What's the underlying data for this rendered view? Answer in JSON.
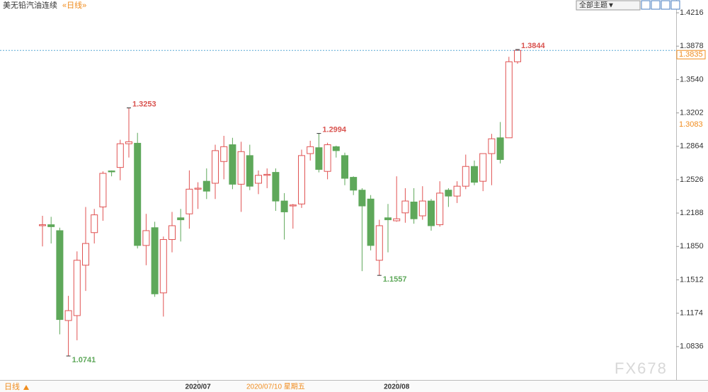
{
  "chart_data": {
    "type": "candlestick",
    "title": "美无铅汽油连续",
    "subtitle": "«日线»",
    "theme_button": "全部主题▼",
    "period": "日线",
    "cursor_label": "2020/07/10 星期五",
    "cursor_index": 27,
    "watermark": "FX678",
    "up_color": "#e05252",
    "down_color": "#5ea85a",
    "categories": [
      null,
      null,
      null,
      null,
      null,
      null,
      null,
      null,
      null,
      null,
      null,
      null,
      null,
      null,
      null,
      null,
      null,
      null,
      "2020/07",
      null,
      null,
      null,
      null,
      null,
      null,
      null,
      null,
      null,
      null,
      null,
      null,
      null,
      null,
      null,
      null,
      null,
      null,
      null,
      null,
      null,
      null,
      "2020/08",
      null,
      null,
      null,
      null,
      null,
      null,
      null,
      null,
      null,
      null,
      null,
      null,
      null,
      null
    ],
    "open": [
      1.206,
      1.207,
      1.201,
      1.11,
      1.115,
      1.166,
      1.199,
      1.225,
      1.2615,
      1.265,
      1.289,
      1.2895,
      1.186,
      1.204,
      1.138,
      1.192,
      1.214,
      1.218,
      1.243,
      1.251,
      1.249,
      1.271,
      1.288,
      1.248,
      1.277,
      1.249,
      1.257,
      1.26,
      1.231,
      1.226,
      1.228,
      1.279,
      1.285,
      1.261,
      1.286,
      1.277,
      1.255,
      1.242,
      1.233,
      1.171,
      1.214,
      1.211,
      1.219,
      1.23,
      1.216,
      1.231,
      1.207,
      1.242,
      1.236,
      1.246,
      1.266,
      1.251,
      1.279,
      1.295,
      1.295,
      1.372
    ],
    "high": [
      1.216,
      1.215,
      1.204,
      1.135,
      1.18,
      1.225,
      1.223,
      1.261,
      1.262,
      1.293,
      1.3253,
      1.3,
      1.218,
      1.21,
      1.195,
      1.22,
      1.223,
      1.262,
      1.25,
      1.264,
      1.288,
      1.297,
      1.295,
      1.291,
      1.288,
      1.262,
      1.264,
      1.264,
      1.239,
      1.228,
      1.283,
      1.292,
      1.2994,
      1.29,
      1.287,
      1.28,
      1.256,
      1.244,
      1.237,
      1.212,
      1.228,
      1.256,
      1.244,
      1.244,
      1.246,
      1.233,
      1.251,
      1.244,
      1.251,
      1.278,
      1.272,
      1.279,
      1.299,
      1.311,
      1.377,
      1.3844
    ],
    "low": [
      1.185,
      1.188,
      1.096,
      1.0741,
      1.09,
      1.14,
      1.188,
      1.211,
      1.256,
      1.252,
      1.275,
      1.183,
      1.166,
      1.134,
      1.114,
      1.179,
      1.19,
      1.203,
      1.223,
      1.233,
      1.233,
      1.253,
      1.243,
      1.22,
      1.242,
      1.238,
      1.244,
      1.221,
      1.192,
      1.203,
      1.224,
      1.272,
      1.26,
      1.253,
      1.275,
      1.247,
      1.237,
      1.16,
      1.181,
      1.1557,
      1.179,
      1.21,
      1.209,
      1.208,
      1.212,
      1.201,
      1.205,
      1.225,
      1.229,
      1.243,
      1.247,
      1.241,
      1.247,
      1.269,
      1.295,
      1.37
    ],
    "close": [
      1.207,
      1.205,
      1.111,
      1.12,
      1.171,
      1.188,
      1.217,
      1.259,
      1.2605,
      1.289,
      1.291,
      1.186,
      1.201,
      1.137,
      1.192,
      1.206,
      1.212,
      1.243,
      1.244,
      1.241,
      1.282,
      1.286,
      1.248,
      1.281,
      1.246,
      1.257,
      1.258,
      1.231,
      1.22,
      1.227,
      1.277,
      1.286,
      1.263,
      1.288,
      1.282,
      1.254,
      1.242,
      1.226,
      1.186,
      1.206,
      1.212,
      1.213,
      1.231,
      1.213,
      1.231,
      1.206,
      1.239,
      1.236,
      1.246,
      1.266,
      1.25,
      1.279,
      1.294,
      1.273,
      1.372,
      1.3835
    ],
    "high_labels": [
      10,
      32,
      55
    ],
    "low_labels": [
      3,
      39
    ],
    "y_markers": [
      1.3083
    ],
    "ylim": [
      1.0498,
      1.4288
    ],
    "yticks": [
      1.4216,
      1.3878,
      {
        "value": 1.354,
        "label": "1.3540"
      },
      1.3202,
      1.2864,
      1.2526,
      1.2188,
      {
        "value": 1.185,
        "label": "1.1850"
      },
      1.1512,
      1.1174,
      1.0836
    ]
  }
}
